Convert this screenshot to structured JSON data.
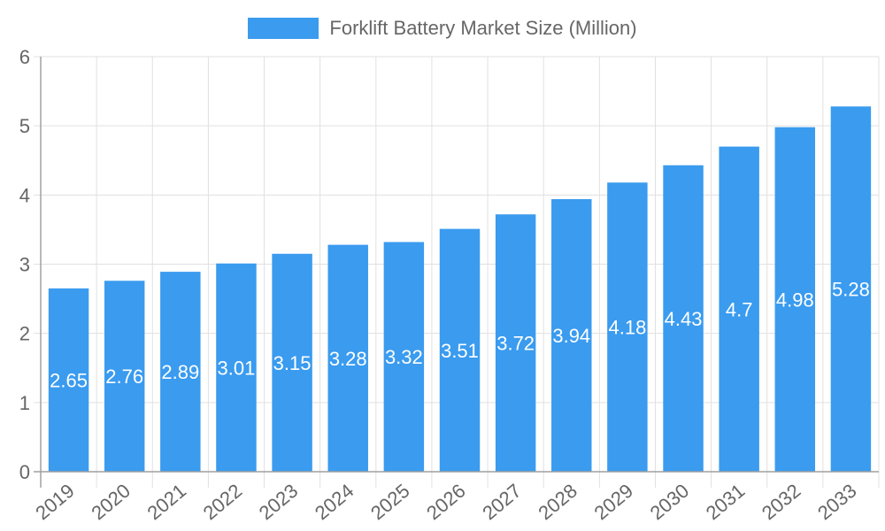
{
  "chart_data": {
    "type": "bar",
    "title": "",
    "legend": [
      "Forklift Battery Market Size (Million)"
    ],
    "legend_position": "top",
    "xlabel": "",
    "ylabel": "",
    "ylim": [
      0,
      6
    ],
    "yticks": [
      0,
      1,
      2,
      3,
      4,
      5,
      6
    ],
    "grid": true,
    "categories": [
      "2019",
      "2020",
      "2021",
      "2022",
      "2023",
      "2024",
      "2025",
      "2026",
      "2027",
      "2028",
      "2029",
      "2030",
      "2031",
      "2032",
      "2033"
    ],
    "series": [
      {
        "name": "Forklift Battery Market Size (Million)",
        "color": "#3a9bef",
        "values": [
          2.65,
          2.76,
          2.89,
          3.01,
          3.15,
          3.28,
          3.32,
          3.51,
          3.72,
          3.94,
          4.18,
          4.43,
          4.7,
          4.98,
          5.28
        ],
        "labels": [
          "2.65",
          "2.76",
          "2.89",
          "3.01",
          "3.15",
          "3.28",
          "3.32",
          "3.51",
          "3.72",
          "3.94",
          "4.18",
          "4.43",
          "4.7",
          "4.98",
          "5.28"
        ]
      }
    ]
  },
  "legend": {
    "label": "Forklift Battery Market Size (Million)"
  },
  "colors": {
    "bar": "#3a9bef",
    "grid": "#e0e0e0",
    "axis": "#a0a0a0",
    "tick_text": "#666666",
    "data_label": "#ffffff"
  }
}
